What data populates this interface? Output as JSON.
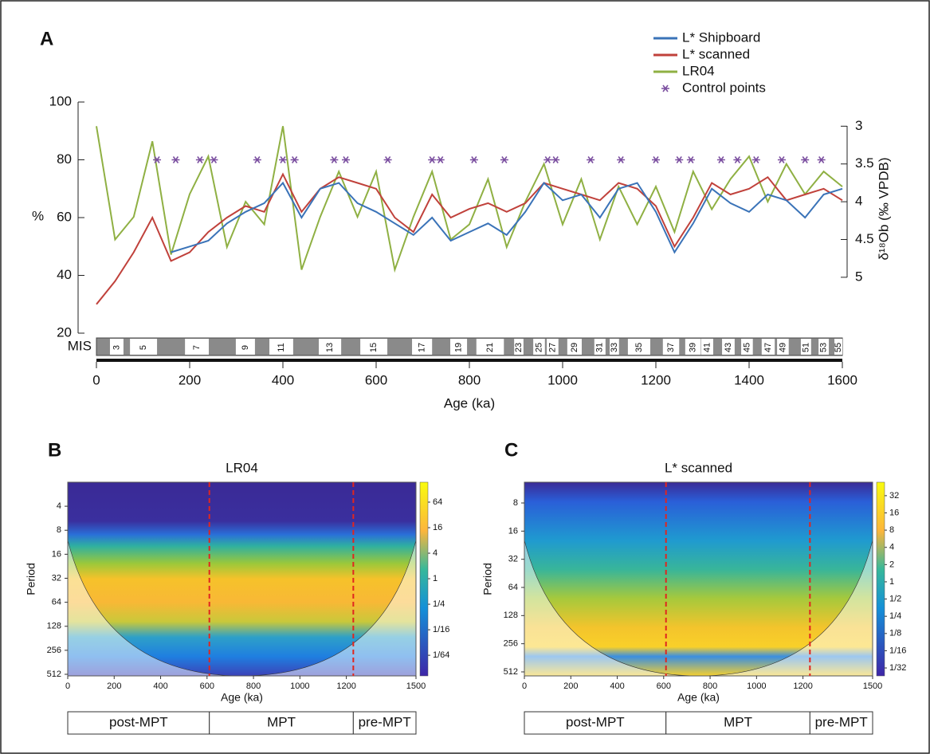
{
  "chart_data": [
    {
      "type": "line",
      "panel": "A",
      "ylabel": "%",
      "y2label": "δ¹⁸Ob (‰ VPDB)",
      "xlabel": "Age (ka)",
      "mis_label": "MIS",
      "xlim": [
        0,
        1600
      ],
      "xticks": [
        0,
        200,
        400,
        600,
        800,
        1000,
        1200,
        1400,
        1600
      ],
      "ylim": [
        20,
        100
      ],
      "yticks": [
        20,
        40,
        60,
        80,
        100
      ],
      "y2lim": [
        5.74,
        2.68
      ],
      "y2ticks": [
        3,
        3.5,
        4,
        4.5,
        5
      ],
      "x": [
        0,
        40,
        80,
        120,
        160,
        200,
        240,
        280,
        320,
        360,
        400,
        440,
        480,
        520,
        560,
        600,
        640,
        680,
        720,
        760,
        800,
        840,
        880,
        920,
        960,
        1000,
        1040,
        1080,
        1120,
        1160,
        1200,
        1240,
        1280,
        1320,
        1360,
        1400,
        1440,
        1480,
        1520,
        1560,
        1600
      ],
      "series": [
        {
          "name": "L* Shipboard",
          "color": "#3a73b8",
          "values": [
            null,
            null,
            null,
            null,
            48,
            50,
            52,
            58,
            62,
            65,
            72,
            60,
            70,
            72,
            65,
            62,
            58,
            54,
            60,
            52,
            55,
            58,
            54,
            62,
            72,
            66,
            68,
            60,
            70,
            72,
            62,
            48,
            58,
            70,
            65,
            62,
            68,
            66,
            60,
            68,
            70
          ]
        },
        {
          "name": "L* scanned",
          "color": "#c0413b",
          "values": [
            30,
            38,
            48,
            60,
            45,
            48,
            55,
            60,
            64,
            62,
            75,
            62,
            70,
            74,
            72,
            70,
            60,
            55,
            68,
            60,
            63,
            65,
            62,
            65,
            72,
            70,
            68,
            66,
            72,
            70,
            64,
            50,
            60,
            72,
            68,
            70,
            74,
            66,
            68,
            70,
            66
          ]
        },
        {
          "name": "LR04",
          "color": "#8fb043",
          "axis": "y2",
          "values": [
            3.0,
            4.5,
            4.2,
            3.2,
            4.7,
            3.9,
            3.4,
            4.6,
            4.0,
            4.3,
            3.0,
            4.9,
            4.2,
            3.6,
            4.2,
            3.6,
            4.9,
            4.2,
            3.6,
            4.5,
            4.3,
            3.7,
            4.6,
            4.0,
            3.5,
            4.3,
            3.7,
            4.5,
            3.8,
            4.3,
            3.8,
            4.4,
            3.6,
            4.1,
            3.7,
            3.4,
            4.0,
            3.5,
            3.9,
            3.6,
            3.8
          ]
        },
        {
          "name": "Control points",
          "color": "#7b4fa0",
          "marker": "asterisk",
          "x": [
            130,
            170,
            222,
            252,
            345,
            400,
            425,
            510,
            535,
            625,
            720,
            738,
            810,
            875,
            968,
            985,
            1060,
            1125,
            1200,
            1250,
            1275,
            1340,
            1375,
            1415,
            1470,
            1520,
            1555
          ],
          "values": [
            80,
            80,
            80,
            80,
            80,
            80,
            80,
            80,
            80,
            80,
            80,
            80,
            80,
            80,
            80,
            80,
            80,
            80,
            80,
            80,
            80,
            80,
            80,
            80,
            80,
            80,
            80
          ]
        }
      ],
      "mis_stages": [
        {
          "label": "3",
          "start": 29,
          "end": 58
        },
        {
          "label": "5",
          "start": 72,
          "end": 130
        },
        {
          "label": "7",
          "start": 190,
          "end": 241
        },
        {
          "label": "9",
          "start": 299,
          "end": 340
        },
        {
          "label": "11",
          "start": 371,
          "end": 422
        },
        {
          "label": "13",
          "start": 477,
          "end": 525
        },
        {
          "label": "15",
          "start": 566,
          "end": 624
        },
        {
          "label": "17",
          "start": 677,
          "end": 720
        },
        {
          "label": "19",
          "start": 759,
          "end": 795
        },
        {
          "label": "21",
          "start": 815,
          "end": 874
        },
        {
          "label": "23",
          "start": 896,
          "end": 916
        },
        {
          "label": "25",
          "start": 937,
          "end": 962
        },
        {
          "label": "27",
          "start": 966,
          "end": 991
        },
        {
          "label": "29",
          "start": 1010,
          "end": 1041
        },
        {
          "label": "31",
          "start": 1068,
          "end": 1092
        },
        {
          "label": "33",
          "start": 1101,
          "end": 1121
        },
        {
          "label": "35",
          "start": 1140,
          "end": 1188
        },
        {
          "label": "37",
          "start": 1215,
          "end": 1250
        },
        {
          "label": "39",
          "start": 1263,
          "end": 1296
        },
        {
          "label": "41",
          "start": 1297,
          "end": 1323
        },
        {
          "label": "43",
          "start": 1342,
          "end": 1369
        },
        {
          "label": "45",
          "start": 1383,
          "end": 1408
        },
        {
          "label": "47",
          "start": 1427,
          "end": 1455
        },
        {
          "label": "49",
          "start": 1460,
          "end": 1485
        },
        {
          "label": "51",
          "start": 1511,
          "end": 1533
        },
        {
          "label": "53",
          "start": 1549,
          "end": 1571
        },
        {
          "label": "55",
          "start": 1583,
          "end": 1600
        }
      ]
    },
    {
      "type": "wavelet",
      "panel": "B",
      "title": "LR04",
      "xlabel": "Age (ka)",
      "ylabel": "Period",
      "xlim": [
        0,
        1500
      ],
      "xticks": [
        0,
        200,
        400,
        600,
        800,
        1000,
        1200,
        1500
      ],
      "ylim": [
        2,
        536
      ],
      "yticks": [
        4,
        8,
        16,
        32,
        64,
        128,
        256,
        512
      ],
      "log_scale": true,
      "clim": [
        0.0051,
        189
      ],
      "cticks": [
        64,
        16,
        4,
        1,
        {
          "value": 0.25,
          "label": "1/4"
        },
        {
          "value": 0.0625,
          "label": "1/16"
        },
        {
          "value": 0.015625,
          "label": "1/64"
        }
      ],
      "markers": [
        610,
        1230
      ],
      "marker_color": "#e0261f",
      "phases": [
        {
          "label": "post-MPT",
          "start": 0,
          "end": 610
        },
        {
          "label": "MPT",
          "start": 610,
          "end": 1230
        },
        {
          "label": "pre-MPT",
          "start": 1230,
          "end": 1500
        }
      ]
    },
    {
      "type": "wavelet",
      "panel": "C",
      "title": "L* scanned",
      "xlabel": "Age (ka)",
      "ylabel": "Period",
      "xlim": [
        0,
        1500
      ],
      "xticks": [
        0,
        200,
        400,
        600,
        800,
        1000,
        1200,
        1500
      ],
      "ylim": [
        4.8,
        565
      ],
      "yticks": [
        8,
        16,
        32,
        64,
        128,
        256,
        512
      ],
      "log_scale": true,
      "clim": [
        0.0227,
        55
      ],
      "cticks": [
        32,
        16,
        8,
        4,
        2,
        1,
        {
          "value": 0.5,
          "label": "1/2"
        },
        {
          "value": 0.25,
          "label": "1/4"
        },
        {
          "value": 0.125,
          "label": "1/8"
        },
        {
          "value": 0.0625,
          "label": "1/16"
        },
        {
          "value": 0.03125,
          "label": "1/32"
        }
      ],
      "markers": [
        610,
        1230
      ],
      "marker_color": "#e0261f",
      "phases": [
        {
          "label": "post-MPT",
          "start": 0,
          "end": 610
        },
        {
          "label": "MPT",
          "start": 610,
          "end": 1230
        },
        {
          "label": "pre-MPT",
          "start": 1230,
          "end": 1500
        }
      ]
    }
  ]
}
